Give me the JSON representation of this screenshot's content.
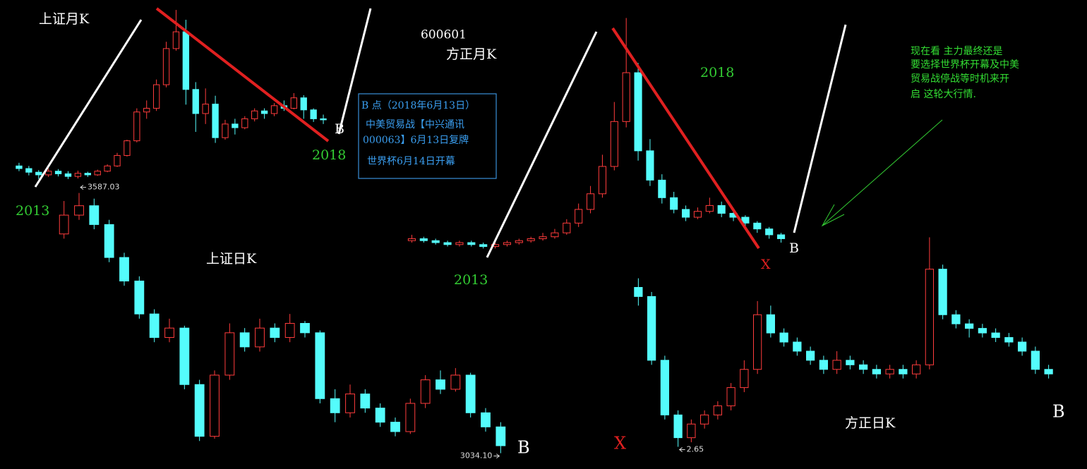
{
  "chart_data": [
    {
      "type": "candlestick",
      "title": "上证月K",
      "ylim": [
        1800,
        5300
      ],
      "up_color": "#ff3c3c",
      "down_color": "#54fcfc",
      "open": [
        2200,
        2150,
        2080,
        2030,
        2100,
        2050,
        2000,
        2060,
        2030,
        2100,
        2200,
        2400,
        2680,
        3230,
        3300,
        3750,
        4440,
        4760,
        3660,
        3200,
        3380,
        2740,
        3000,
        2930,
        3100,
        3250,
        3200,
        3350,
        3300,
        3500,
        3270,
        3100
      ],
      "high": [
        2260,
        2200,
        2120,
        2150,
        2140,
        2100,
        2110,
        2090,
        2130,
        2230,
        2450,
        2700,
        3300,
        3450,
        3850,
        4570,
        5178,
        4990,
        3800,
        3680,
        3540,
        3080,
        3100,
        3150,
        3300,
        3300,
        3400,
        3450,
        3590,
        3550,
        3300,
        3180
      ],
      "low": [
        2100,
        2020,
        1950,
        1990,
        2000,
        1950,
        1960,
        1990,
        2010,
        2080,
        2180,
        2380,
        2650,
        3100,
        3250,
        3700,
        4400,
        3370,
        2850,
        3000,
        2640,
        2700,
        2800,
        2900,
        3050,
        3100,
        3150,
        3250,
        3280,
        3100,
        3040,
        3000
      ],
      "close": [
        2150,
        2080,
        2030,
        2100,
        2050,
        2000,
        2060,
        2030,
        2100,
        2200,
        2400,
        2680,
        3230,
        3300,
        3750,
        4440,
        4760,
        3660,
        3200,
        3380,
        2740,
        3000,
        2930,
        3100,
        3250,
        3200,
        3350,
        3300,
        3500,
        3270,
        3100,
        3080
      ]
    },
    {
      "type": "candlestick",
      "title": "上证日K",
      "ylim": [
        3020,
        3600
      ],
      "up_color": "#ff3c3c",
      "down_color": "#54fcfc",
      "open": [
        3500,
        3540,
        3560,
        3520,
        3450,
        3400,
        3330,
        3280,
        3300,
        3180,
        3070,
        3200,
        3290,
        3260,
        3300,
        3280,
        3310,
        3290,
        3150,
        3120,
        3160,
        3130,
        3100,
        3080,
        3140,
        3190,
        3170,
        3200,
        3120,
        3090
      ],
      "high": [
        3570,
        3587.03,
        3575,
        3530,
        3460,
        3410,
        3340,
        3320,
        3305,
        3190,
        3210,
        3310,
        3300,
        3320,
        3310,
        3330,
        3315,
        3295,
        3170,
        3180,
        3170,
        3140,
        3110,
        3150,
        3200,
        3210,
        3215,
        3205,
        3130,
        3100
      ],
      "low": [
        3490,
        3530,
        3510,
        3440,
        3390,
        3320,
        3270,
        3270,
        3170,
        3060,
        3065,
        3190,
        3250,
        3250,
        3270,
        3270,
        3280,
        3140,
        3100,
        3110,
        3120,
        3090,
        3070,
        3075,
        3130,
        3160,
        3165,
        3110,
        3080,
        3034.1
      ],
      "close": [
        3540,
        3560,
        3520,
        3450,
        3400,
        3330,
        3280,
        3300,
        3180,
        3070,
        3200,
        3290,
        3260,
        3300,
        3280,
        3310,
        3290,
        3150,
        3120,
        3160,
        3130,
        3100,
        3080,
        3140,
        3190,
        3170,
        3200,
        3120,
        3090,
        3050
      ],
      "high_label": {
        "value": 3587.03,
        "label": "3587.03"
      },
      "low_label": {
        "value": 3034.1,
        "label": "3034.10"
      }
    },
    {
      "type": "candlestick",
      "title": "方正月K",
      "code": "600601",
      "ylim": [
        2,
        15
      ],
      "up_color": "#ff3c3c",
      "down_color": "#54fcfc",
      "open": [
        3.4,
        3.5,
        3.4,
        3.3,
        3.2,
        3.3,
        3.2,
        3.1,
        3.2,
        3.3,
        3.4,
        3.5,
        3.6,
        3.8,
        4.3,
        5.0,
        5.8,
        7.2,
        9.5,
        12.0,
        8.0,
        6.5,
        5.6,
        5.0,
        4.6,
        4.9,
        5.2,
        4.8,
        4.6,
        4.3,
        4.0,
        3.7
      ],
      "high": [
        3.7,
        3.6,
        3.5,
        3.4,
        3.4,
        3.4,
        3.3,
        3.3,
        3.4,
        3.5,
        3.6,
        3.8,
        4.0,
        4.5,
        5.3,
        6.2,
        7.8,
        10.5,
        14.8,
        12.5,
        8.6,
        6.8,
        5.9,
        5.2,
        5.1,
        5.6,
        5.4,
        4.9,
        4.7,
        4.4,
        4.1,
        3.8
      ],
      "low": [
        3.3,
        3.3,
        3.2,
        3.1,
        3.1,
        3.1,
        3.0,
        3.0,
        3.1,
        3.2,
        3.3,
        3.4,
        3.5,
        3.7,
        4.1,
        4.8,
        5.6,
        7.0,
        9.2,
        7.5,
        6.2,
        5.3,
        4.8,
        4.4,
        4.5,
        4.8,
        4.6,
        4.4,
        4.1,
        3.8,
        3.5,
        3.3
      ],
      "close": [
        3.5,
        3.4,
        3.3,
        3.2,
        3.3,
        3.2,
        3.1,
        3.2,
        3.3,
        3.4,
        3.5,
        3.6,
        3.8,
        4.3,
        5.0,
        5.8,
        7.2,
        9.5,
        12.0,
        8.0,
        6.5,
        5.6,
        5.0,
        4.6,
        4.9,
        5.2,
        4.8,
        4.6,
        4.3,
        4.0,
        3.7,
        3.5
      ]
    },
    {
      "type": "candlestick",
      "title": "方正日K",
      "ylim": [
        2.6,
        5.0
      ],
      "up_color": "#ff3c3c",
      "down_color": "#54fcfc",
      "open": [
        4.4,
        4.3,
        3.6,
        3.0,
        2.75,
        2.9,
        3.0,
        3.1,
        3.3,
        3.5,
        4.1,
        3.9,
        3.8,
        3.7,
        3.6,
        3.5,
        3.6,
        3.55,
        3.5,
        3.45,
        3.5,
        3.45,
        3.55,
        4.6,
        4.1,
        4.0,
        3.95,
        3.9,
        3.85,
        3.8,
        3.7,
        3.5
      ],
      "high": [
        4.5,
        4.35,
        3.65,
        3.05,
        2.95,
        3.05,
        3.15,
        3.35,
        3.6,
        4.25,
        4.2,
        3.95,
        3.85,
        3.75,
        3.65,
        3.7,
        3.65,
        3.6,
        3.55,
        3.55,
        3.55,
        3.6,
        4.95,
        4.65,
        4.15,
        4.05,
        4.0,
        3.95,
        3.9,
        3.85,
        3.75,
        3.55
      ],
      "low": [
        4.2,
        3.55,
        2.95,
        2.65,
        2.7,
        2.85,
        2.95,
        3.05,
        3.25,
        3.45,
        3.85,
        3.75,
        3.65,
        3.55,
        3.45,
        3.45,
        3.5,
        3.45,
        3.4,
        3.4,
        3.4,
        3.4,
        3.5,
        4.05,
        3.95,
        3.85,
        3.85,
        3.8,
        3.75,
        3.65,
        3.45,
        3.4
      ],
      "close": [
        4.3,
        3.6,
        3.0,
        2.75,
        2.9,
        3.0,
        3.1,
        3.3,
        3.5,
        4.1,
        3.9,
        3.8,
        3.7,
        3.6,
        3.5,
        3.6,
        3.55,
        3.5,
        3.45,
        3.5,
        3.45,
        3.55,
        4.6,
        4.1,
        4.0,
        3.95,
        3.9,
        3.85,
        3.8,
        3.7,
        3.5,
        3.45
      ],
      "low_label": {
        "value": 2.65,
        "label": "2.65"
      }
    }
  ],
  "annotations": [
    "2013",
    "2018",
    "B",
    "B",
    "2018",
    "2013",
    "X",
    "B",
    "X",
    "B"
  ],
  "info_box": [
    "B 点（2018年6月13日）",
    "中美贸易战【中兴通讯",
    "000063】6月13日复牌",
    "世界杯6月14日开幕"
  ],
  "note": [
    "现在看 主力最终还是",
    "要选择世界杯开幕及中美",
    "贸易战停战等时机来开",
    "启 这轮大行情."
  ]
}
